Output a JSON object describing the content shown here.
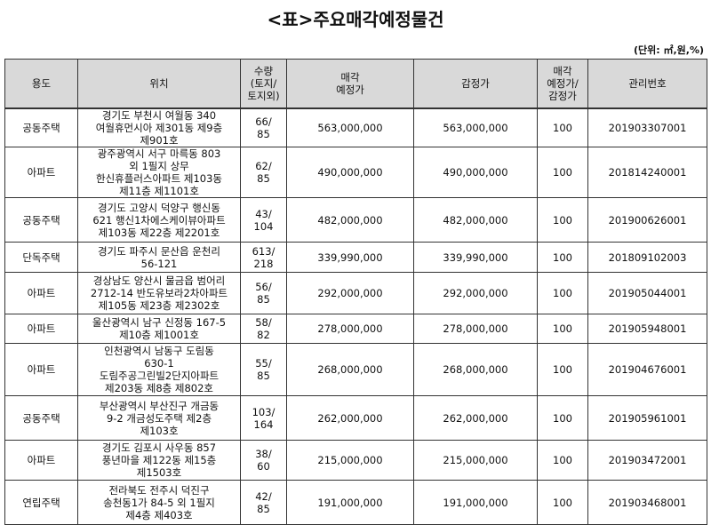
{
  "header": {
    "title": "<표>주요매각예정물건",
    "unit": "(단위: ㎡,원,%)"
  },
  "table": {
    "columns": [
      "용도",
      "위치",
      "수량\n(토지/\n토지외)",
      "매각\n예정가",
      "감정가",
      "매각\n예정가/\n감정가",
      "관리번호"
    ],
    "rows": [
      [
        "공동주택",
        "경기도 부천시 여월동 340\n여월휴먼시아 제301동 제9층\n제901호",
        "66/\n85",
        "563,000,000",
        "563,000,000",
        "100",
        "201903307001"
      ],
      [
        "아파트",
        "광주광역시 서구 마륵동 803\n외 1필지 상무\n한신휴플러스아파트 제103동\n제11층 제1101호",
        "62/\n85",
        "490,000,000",
        "490,000,000",
        "100",
        "201814240001"
      ],
      [
        "공동주택",
        "경기도 고양시 덕양구 행신동\n621 행신1차에스케이뷰아파트\n제103동 제22층 제2201호",
        "43/\n104",
        "482,000,000",
        "482,000,000",
        "100",
        "201900626001"
      ],
      [
        "단독주택",
        "경기도 파주시 문산읍 운천리\n56-121",
        "613/\n218",
        "339,990,000",
        "339,990,000",
        "100",
        "201809102003"
      ],
      [
        "아파트",
        "경상남도 양산시 물금읍 범어리\n2712-14 반도유보라2차아파트\n제105동 제23층 제2302호",
        "56/\n85",
        "292,000,000",
        "292,000,000",
        "100",
        "201905044001"
      ],
      [
        "아파트",
        "울산광역시 남구 신정동 167-5\n제10층 제1001호",
        "58/\n82",
        "278,000,000",
        "278,000,000",
        "100",
        "201905948001"
      ],
      [
        "아파트",
        "인천광역시 남동구 도림동\n630-1\n도림주공그린빌2단지아파트\n제203동 제8층 제802호",
        "55/\n85",
        "268,000,000",
        "268,000,000",
        "100",
        "201904676001"
      ],
      [
        "공동주택",
        "부산광역시 부산진구 개금동\n9-2 개금성도주택 제2층\n제103호",
        "103/\n164",
        "262,000,000",
        "262,000,000",
        "100",
        "201905961001"
      ],
      [
        "아파트",
        "경기도 김포시 사우동 857\n풍년마을 제122동 제15층\n제1503호",
        "38/\n60",
        "215,000,000",
        "215,000,000",
        "100",
        "201903472001"
      ],
      [
        "연립주택",
        "전라북도 전주시 덕진구\n송천동1가 84-5 외 1필지\n제4층 제403호",
        "42/\n85",
        "191,000,000",
        "191,000,000",
        "100",
        "201903468001"
      ]
    ]
  }
}
